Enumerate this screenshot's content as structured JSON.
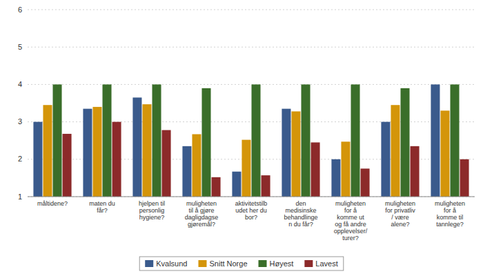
{
  "chart_data": {
    "type": "bar",
    "categories": [
      "måltidene?",
      "maten du\nfår?",
      "hjelpen til\npersonlig\nhygiene?",
      "muligheten\ntil å gjøre\ndagligdagse\ngjøremål?",
      "aktivitetstilb\nudet her du\nbor?",
      "den\nmedisinske\nbehandlinge\nn du får?",
      "muligheten\nfor å\nkomme ut\nog få andre\nopplevelser/\nturer?",
      "muligheten\nfor privatliv\n/ være\nalene?",
      "muligheten\nfor å\nkomme til\ntannlege?"
    ],
    "series": [
      {
        "name": "Kvalsund",
        "color": "#3a5a8c",
        "values": [
          3.0,
          3.35,
          3.65,
          2.35,
          1.67,
          3.35,
          2.0,
          3.0,
          4.0
        ]
      },
      {
        "name": "Snitt Norge",
        "color": "#d4950a",
        "values": [
          3.45,
          3.4,
          3.47,
          2.67,
          2.52,
          3.28,
          2.47,
          3.45,
          3.3
        ]
      },
      {
        "name": "Høyest",
        "color": "#3a6e2a",
        "values": [
          4.0,
          4.0,
          4.0,
          3.9,
          4.0,
          4.0,
          4.0,
          3.9,
          4.0
        ]
      },
      {
        "name": "Lavest",
        "color": "#8c2a2a",
        "values": [
          2.68,
          3.0,
          2.78,
          1.52,
          1.57,
          2.45,
          1.75,
          2.35,
          2.0
        ]
      }
    ],
    "ylim": [
      1,
      6
    ],
    "yticks": [
      1,
      2,
      3,
      4,
      5,
      6
    ],
    "grid": true,
    "legend": "bottom"
  }
}
